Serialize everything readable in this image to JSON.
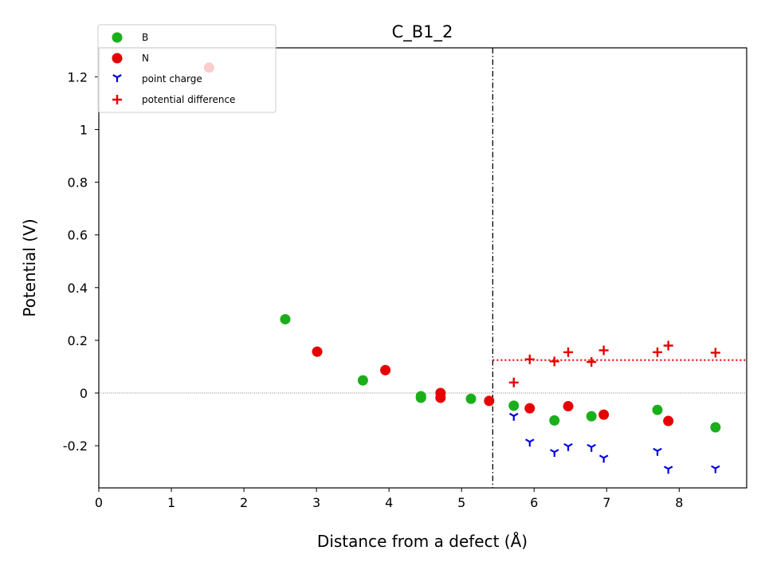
{
  "chart_data": {
    "type": "scatter",
    "title": "C_B1_2",
    "xlabel": "Distance from a defect (Å)",
    "ylabel": "Potential (V)",
    "xlim": [
      0,
      8.93
    ],
    "ylim": [
      -0.36,
      1.31
    ],
    "x_ticks": [
      0,
      1,
      2,
      3,
      4,
      5,
      6,
      7,
      8
    ],
    "x_tick_labels": [
      "0",
      "1",
      "2",
      "3",
      "4",
      "5",
      "6",
      "7",
      "8"
    ],
    "y_ticks": [
      -0.2,
      0,
      0.2,
      0.4,
      0.6,
      0.8,
      1,
      1.2
    ],
    "y_tick_labels": [
      "-0.2",
      "0",
      "0.2",
      "0.4",
      "0.6",
      "0.8",
      "1",
      "1.2"
    ],
    "grid": false,
    "legend_position": "top-left",
    "defect_region_boundary_x": 5.43,
    "average_potential_difference": 0.125,
    "zero_reference_y": 0,
    "series": [
      {
        "name": "B",
        "marker": "circle",
        "color": "#1aaf1a",
        "points": [
          [
            2.57,
            0.28
          ],
          [
            3.64,
            0.048
          ],
          [
            4.44,
            -0.012
          ],
          [
            4.44,
            -0.018
          ],
          [
            5.13,
            -0.022
          ],
          [
            5.72,
            -0.048
          ],
          [
            6.28,
            -0.104
          ],
          [
            6.79,
            -0.088
          ],
          [
            7.7,
            -0.064
          ],
          [
            8.5,
            -0.13
          ]
        ]
      },
      {
        "name": "N",
        "marker": "circle",
        "color": "#e60000",
        "points": [
          [
            1.52,
            1.235
          ],
          [
            3.01,
            0.157
          ],
          [
            3.95,
            0.087
          ],
          [
            4.71,
            0.0
          ],
          [
            4.71,
            -0.018
          ],
          [
            5.38,
            -0.03
          ],
          [
            5.94,
            -0.058
          ],
          [
            6.47,
            -0.05
          ],
          [
            6.96,
            -0.082
          ],
          [
            7.85,
            -0.106
          ]
        ]
      },
      {
        "name": "point charge",
        "marker": "tri_down",
        "color": "#0000e6",
        "points": [
          [
            5.72,
            -0.087
          ],
          [
            5.94,
            -0.185
          ],
          [
            6.28,
            -0.224
          ],
          [
            6.47,
            -0.202
          ],
          [
            6.79,
            -0.205
          ],
          [
            6.96,
            -0.246
          ],
          [
            7.7,
            -0.22
          ],
          [
            7.85,
            -0.288
          ],
          [
            8.5,
            -0.286
          ]
        ]
      },
      {
        "name": "potential difference",
        "marker": "plus",
        "color": "#e60000",
        "points": [
          [
            5.72,
            0.04
          ],
          [
            5.94,
            0.128
          ],
          [
            6.28,
            0.12
          ],
          [
            6.47,
            0.155
          ],
          [
            6.79,
            0.118
          ],
          [
            6.96,
            0.162
          ],
          [
            7.7,
            0.155
          ],
          [
            7.85,
            0.18
          ],
          [
            8.5,
            0.153
          ]
        ]
      }
    ]
  }
}
